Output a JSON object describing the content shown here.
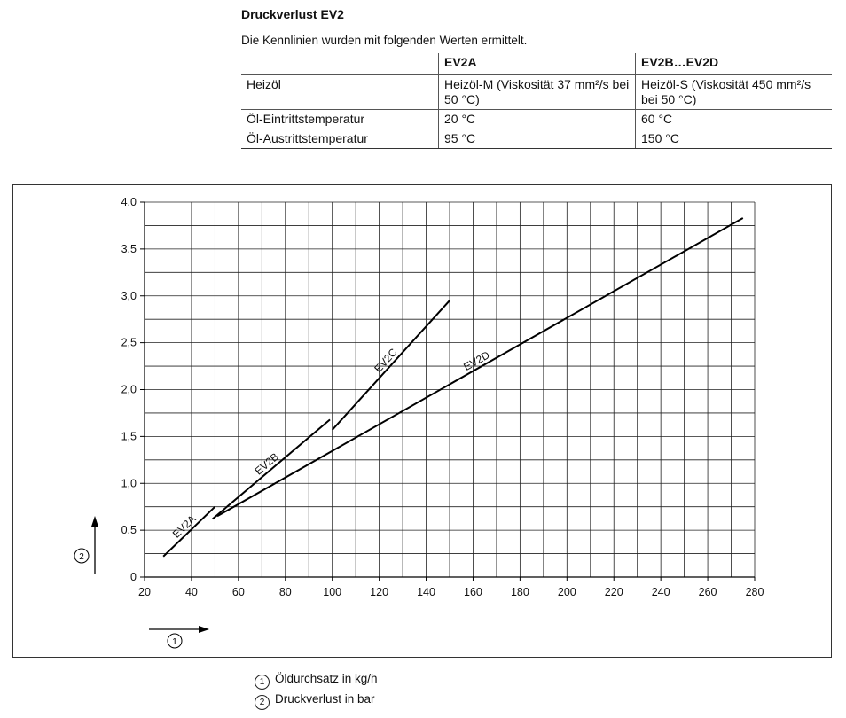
{
  "heading": "Druckverlust EV2",
  "subheading": "Die Kennlinien wurden mit folgenden Werten ermittelt.",
  "table": {
    "headers": [
      "",
      "EV2A",
      "EV2B…EV2D"
    ],
    "rows": [
      [
        "Heizöl",
        "Heizöl-M (Viskosität 37 mm²/s bei 50 °C)",
        "Heizöl-S (Viskosität 450 mm²/s bei 50 °C)"
      ],
      [
        "Öl-Eintrittstemperatur",
        "20 °C",
        "60 °C"
      ],
      [
        "Öl-Austrittstemperatur",
        "95 °C",
        "150 °C"
      ]
    ]
  },
  "chart_data": {
    "type": "line",
    "title": "",
    "xlabel": "①",
    "ylabel": "②",
    "xlim": [
      20,
      280
    ],
    "ylim": [
      0,
      4.0
    ],
    "x_ticks": [
      "20",
      "40",
      "60",
      "80",
      "100",
      "120",
      "140",
      "160",
      "180",
      "200",
      "220",
      "240",
      "260",
      "280"
    ],
    "y_ticks": [
      "0",
      "0,5",
      "1,0",
      "1,5",
      "2,0",
      "2,5",
      "3,0",
      "3,5",
      "4,0"
    ],
    "grid": true,
    "series": [
      {
        "name": "EV2A",
        "x": [
          28,
          50
        ],
        "y": [
          0.22,
          0.75
        ]
      },
      {
        "name": "EV2B",
        "x": [
          49,
          99
        ],
        "y": [
          0.62,
          1.68
        ]
      },
      {
        "name": "EV2C",
        "x": [
          100,
          150
        ],
        "y": [
          1.57,
          2.95
        ]
      },
      {
        "name": "EV2D",
        "x": [
          51,
          275
        ],
        "y": [
          0.65,
          3.83
        ]
      }
    ]
  },
  "legend_items": [
    {
      "mark": "1",
      "text": "Öldurchsatz in kg/h"
    },
    {
      "mark": "2",
      "text": "Druckverlust in bar"
    }
  ]
}
